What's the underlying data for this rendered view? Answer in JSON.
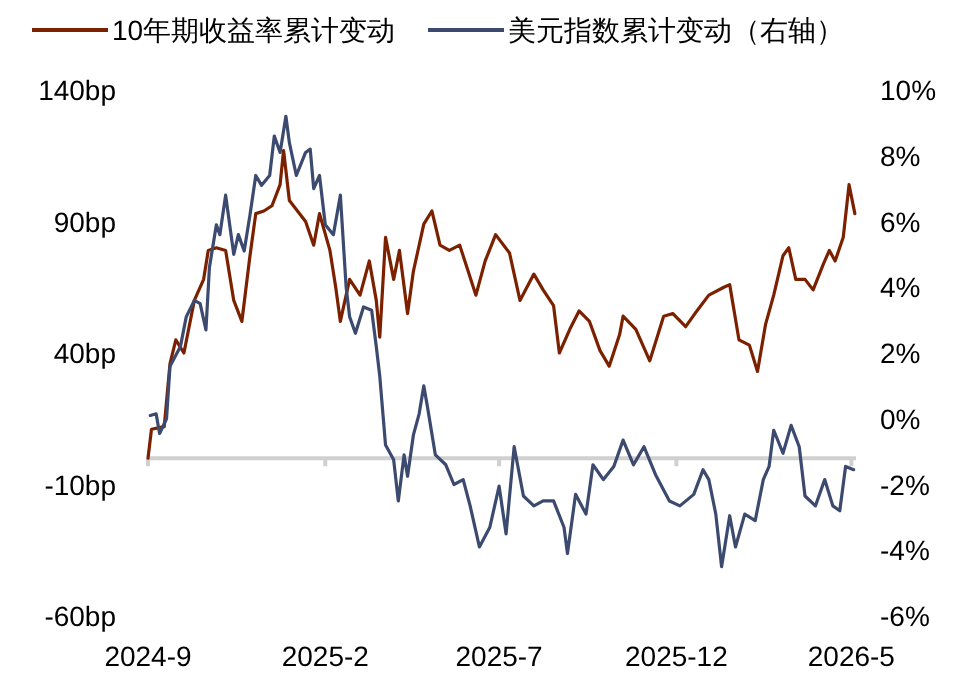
{
  "chart_data": {
    "type": "line",
    "legend": "top",
    "grid": false,
    "xlim": [
      "2024-09-01",
      "2026-05-05"
    ],
    "xticks": [
      {
        "value": "2024-09",
        "label": "2024-9"
      },
      {
        "value": "2025-02",
        "label": "2025-2"
      },
      {
        "value": "2025-07",
        "label": "2025-7"
      },
      {
        "value": "2025-12",
        "label": "2025-12"
      },
      {
        "value": "2026-05",
        "label": "2026-5"
      }
    ],
    "ylim": [
      -60,
      140
    ],
    "yticks": [
      {
        "value": -60,
        "label": "-60bp"
      },
      {
        "value": -10,
        "label": "-10bp"
      },
      {
        "value": 40,
        "label": "40bp"
      },
      {
        "value": 90,
        "label": "90bp"
      },
      {
        "value": 140,
        "label": "140bp"
      }
    ],
    "y2lim": [
      -6,
      10
    ],
    "y2ticks": [
      {
        "value": -6,
        "label": "-6%"
      },
      {
        "value": -4,
        "label": "-4%"
      },
      {
        "value": -2,
        "label": "-2%"
      },
      {
        "value": 0,
        "label": "0%"
      },
      {
        "value": 2,
        "label": "2%"
      },
      {
        "value": 4,
        "label": "4%"
      },
      {
        "value": 6,
        "label": "6%"
      },
      {
        "value": 8,
        "label": "8%"
      },
      {
        "value": 10,
        "label": "10%"
      }
    ],
    "series": [
      {
        "name": "10年期收益率累计变动",
        "color": "#7b2100",
        "x": [
          "2024-09-01",
          "2024-09-04",
          "2024-09-15",
          "2024-09-20",
          "2024-09-25",
          "2024-10-02",
          "2024-10-11",
          "2024-10-19",
          "2024-10-23",
          "2024-10-30",
          "2024-11-07",
          "2024-11-14",
          "2024-11-21",
          "2024-11-28",
          "2024-12-03",
          "2024-12-10",
          "2024-12-17",
          "2024-12-24",
          "2024-12-27",
          "2025-01-01",
          "2025-01-08",
          "2025-01-15",
          "2025-01-22",
          "2025-01-27",
          "2025-02-05",
          "2025-02-10",
          "2025-02-14",
          "2025-02-22",
          "2025-03-03",
          "2025-03-11",
          "2025-03-17",
          "2025-03-20",
          "2025-03-25",
          "2025-04-01",
          "2025-04-06",
          "2025-04-13",
          "2025-04-18",
          "2025-04-27",
          "2025-05-04",
          "2025-05-11",
          "2025-05-19",
          "2025-05-28",
          "2025-06-11",
          "2025-06-19",
          "2025-06-28",
          "2025-07-10",
          "2025-07-19",
          "2025-07-31",
          "2025-08-08",
          "2025-08-17",
          "2025-08-22",
          "2025-08-31",
          "2025-09-08",
          "2025-09-17",
          "2025-09-26",
          "2025-10-04",
          "2025-10-13",
          "2025-10-16",
          "2025-10-27",
          "2025-11-08",
          "2025-11-20",
          "2025-11-28",
          "2025-12-09",
          "2025-12-17",
          "2025-12-29",
          "2026-01-11",
          "2026-01-16",
          "2026-01-24",
          "2026-02-02",
          "2026-02-09",
          "2026-02-16",
          "2026-02-23",
          "2026-03-03",
          "2026-03-08",
          "2026-03-14",
          "2026-03-22",
          "2026-03-29",
          "2026-04-07",
          "2026-04-12",
          "2026-04-17",
          "2026-04-24",
          "2026-04-29",
          "2026-05-04"
        ],
        "values": [
          0,
          11,
          12,
          36,
          45,
          40,
          60,
          68,
          79,
          80,
          79,
          60,
          52,
          77,
          93,
          94,
          96,
          104,
          117,
          98,
          94,
          90,
          81,
          93,
          79,
          65,
          52,
          68,
          62,
          75,
          60,
          46,
          84,
          68,
          79,
          55,
          71,
          89,
          94,
          81,
          79,
          81,
          62,
          75,
          85,
          78,
          60,
          70,
          64,
          58,
          40,
          49,
          56,
          52,
          41,
          35,
          47,
          54,
          49,
          37,
          54,
          55,
          50,
          55,
          62,
          65,
          66,
          45,
          43,
          33,
          51,
          62,
          77,
          80,
          68,
          68,
          64,
          74,
          79,
          75,
          84,
          104,
          93
        ]
      },
      {
        "name": "美元指数累计变动（右轴）",
        "color": "#3b4a6e",
        "axis": "y2",
        "x": [
          "2024-09-03",
          "2024-09-08",
          "2024-09-11",
          "2024-09-17",
          "2024-09-20",
          "2024-09-29",
          "2024-10-04",
          "2024-10-11",
          "2024-10-16",
          "2024-10-21",
          "2024-10-24",
          "2024-10-30",
          "2024-11-02",
          "2024-11-07",
          "2024-11-14",
          "2024-11-18",
          "2024-11-23",
          "2024-11-28",
          "2024-12-03",
          "2024-12-08",
          "2024-12-15",
          "2024-12-19",
          "2024-12-24",
          "2024-12-29",
          "2025-01-01",
          "2025-01-07",
          "2025-01-15",
          "2025-01-19",
          "2025-01-22",
          "2025-01-27",
          "2025-02-01",
          "2025-02-08",
          "2025-02-14",
          "2025-02-19",
          "2025-02-22",
          "2025-02-27",
          "2025-03-06",
          "2025-03-13",
          "2025-03-17",
          "2025-03-20",
          "2025-03-25",
          "2025-04-01",
          "2025-04-05",
          "2025-04-10",
          "2025-04-13",
          "2025-04-18",
          "2025-04-23",
          "2025-04-27",
          "2025-04-30",
          "2025-05-07",
          "2025-05-16",
          "2025-05-23",
          "2025-05-31",
          "2025-06-06",
          "2025-06-14",
          "2025-06-23",
          "2025-07-01",
          "2025-07-07",
          "2025-07-14",
          "2025-07-22",
          "2025-07-31",
          "2025-08-08",
          "2025-08-17",
          "2025-08-26",
          "2025-08-29",
          "2025-09-05",
          "2025-09-14",
          "2025-09-20",
          "2025-09-29",
          "2025-10-08",
          "2025-10-16",
          "2025-10-25",
          "2025-11-03",
          "2025-11-13",
          "2025-11-25",
          "2025-12-04",
          "2025-12-16",
          "2025-12-24",
          "2025-12-29",
          "2026-01-04",
          "2026-01-09",
          "2026-01-16",
          "2026-01-21",
          "2026-01-29",
          "2026-02-07",
          "2026-02-14",
          "2026-02-19",
          "2026-02-23",
          "2026-03-03",
          "2026-03-10",
          "2026-03-17",
          "2026-03-22",
          "2026-03-31",
          "2026-04-08",
          "2026-04-15",
          "2026-04-21",
          "2026-04-26",
          "2026-05-03"
        ],
        "values": [
          0.1,
          0.15,
          -0.45,
          0,
          1.6,
          2.2,
          3.1,
          3.6,
          3.5,
          2.7,
          4.6,
          5.9,
          5.6,
          6.8,
          5.0,
          5.6,
          5.1,
          6.2,
          7.4,
          7.1,
          7.4,
          8.6,
          8.1,
          9.2,
          8.4,
          7.4,
          8.1,
          8.2,
          7.0,
          7.4,
          5.9,
          5.6,
          6.8,
          4.0,
          3.1,
          2.6,
          3.4,
          3.3,
          2.2,
          1.3,
          -0.8,
          -1.25,
          -2.5,
          -1.1,
          -1.75,
          -0.5,
          0.15,
          1.0,
          0.4,
          -1.1,
          -1.4,
          -2.0,
          -1.85,
          -2.65,
          -3.9,
          -3.3,
          -2.05,
          -3.5,
          -0.85,
          -2.35,
          -2.65,
          -2.5,
          -2.5,
          -3.3,
          -4.1,
          -2.3,
          -2.9,
          -1.4,
          -1.85,
          -1.45,
          -0.65,
          -1.4,
          -0.85,
          -1.7,
          -2.5,
          -2.65,
          -2.3,
          -1.55,
          -1.85,
          -2.9,
          -4.5,
          -2.95,
          -3.9,
          -2.9,
          -3.1,
          -1.85,
          -1.45,
          -0.35,
          -1.05,
          -0.2,
          -0.85,
          -2.35,
          -2.65,
          -1.85,
          -2.65,
          -2.8,
          -1.45,
          -1.55
        ]
      }
    ]
  }
}
